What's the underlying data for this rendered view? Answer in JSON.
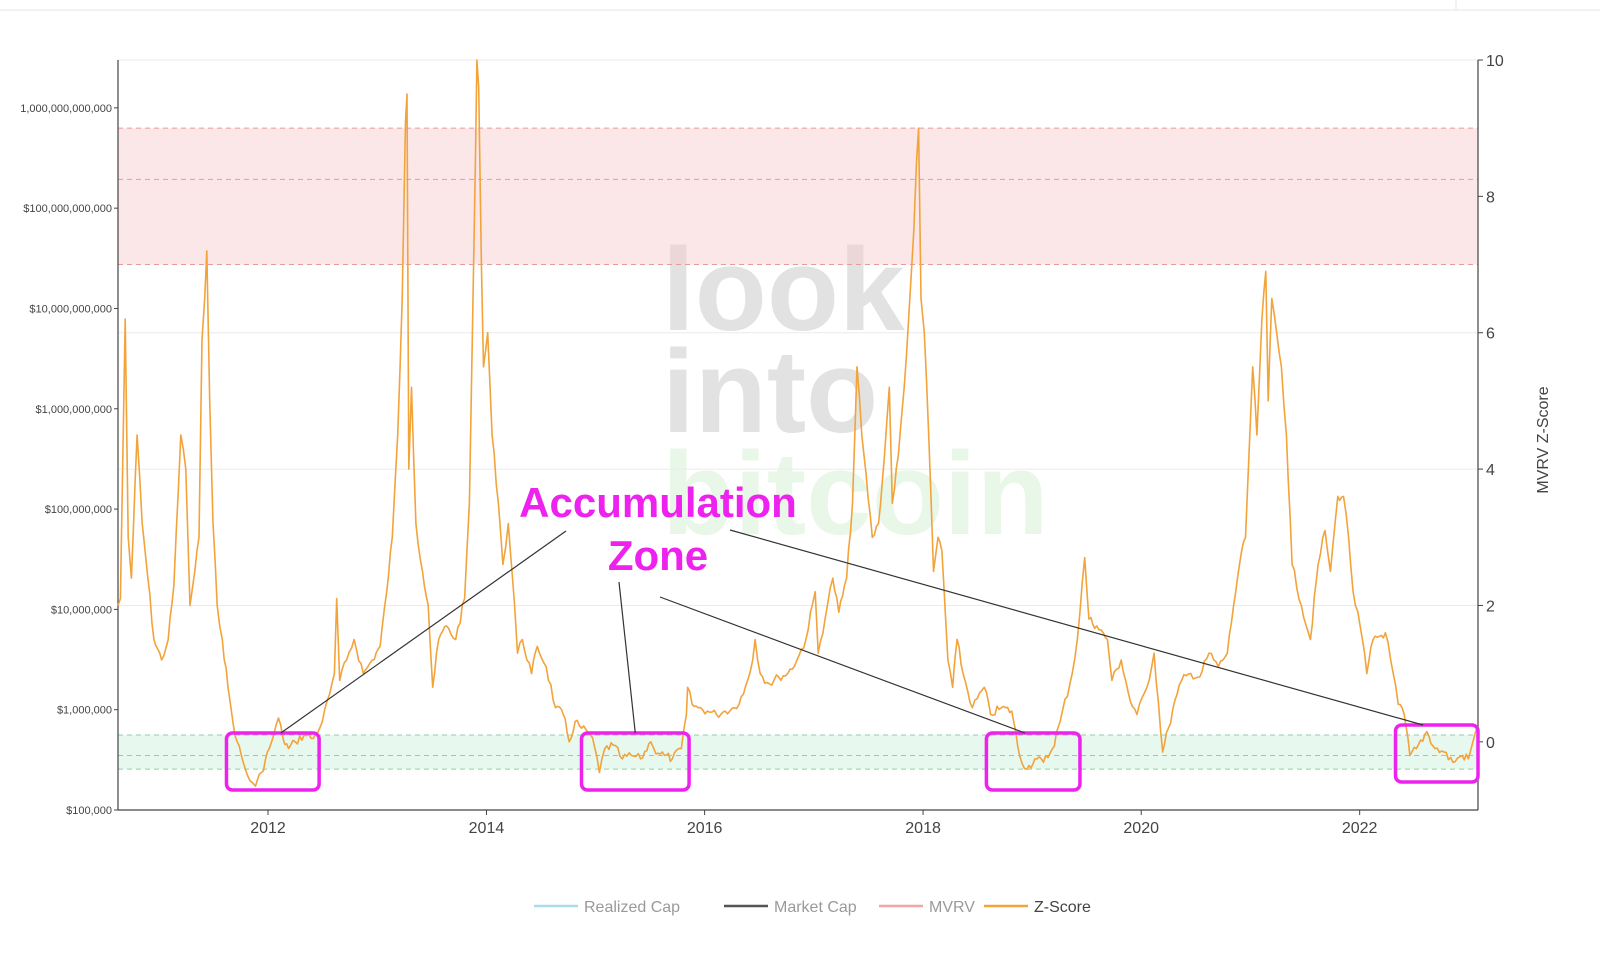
{
  "chart_data": {
    "type": "line",
    "x_domain": [
      "2010-08-17",
      "2023-02-01"
    ],
    "x_ticks": [
      "2012",
      "2014",
      "2016",
      "2018",
      "2020",
      "2022"
    ],
    "y_left": {
      "scale": "log",
      "range": [
        100000,
        3000000000000
      ],
      "ticks": [
        {
          "value": 100000,
          "label": "$100,000"
        },
        {
          "value": 1000000,
          "label": "$1,000,000"
        },
        {
          "value": 10000000,
          "label": "$10,000,000"
        },
        {
          "value": 100000000,
          "label": "$100,000,000"
        },
        {
          "value": 1000000000,
          "label": "$1,000,000,000"
        },
        {
          "value": 10000000000,
          "label": "$10,000,000,000"
        },
        {
          "value": 100000000000,
          "label": "$100,000,000,000"
        },
        {
          "value": 1000000000000,
          "label": "1,000,000,000,000"
        }
      ]
    },
    "y_right": {
      "label": "MVRV Z-Score",
      "scale": "linear",
      "range": [
        -1,
        10
      ],
      "ticks": [
        0,
        2,
        4,
        6,
        8,
        10
      ]
    },
    "bands": [
      {
        "name": "red-band",
        "y0": 7,
        "y1": 9,
        "inner_line": 8.25,
        "color": "#f7c9c9"
      },
      {
        "name": "green-band",
        "y0": -0.4,
        "y1": 0.1,
        "inner_line": -0.2,
        "color": "#c9f0d9"
      }
    ],
    "legend": {
      "placement": "bottom-center",
      "items": [
        {
          "name": "Realized Cap",
          "color": "#a8dcea"
        },
        {
          "name": "Market Cap",
          "color": "#555555"
        },
        {
          "name": "MVRV",
          "color": "#f2a6a6"
        },
        {
          "name": "Z-Score",
          "color": "#f2a33a"
        }
      ]
    },
    "series": [
      {
        "name": "Z-Score",
        "color": "#f2a33a",
        "points": [
          [
            "2010-08-17",
            2.0
          ],
          [
            "2010-08-25",
            2.1
          ],
          [
            "2010-09-10",
            6.2
          ],
          [
            "2010-09-20",
            3.0
          ],
          [
            "2010-10-01",
            2.4
          ],
          [
            "2010-10-20",
            4.5
          ],
          [
            "2010-11-06",
            3.2
          ],
          [
            "2010-11-25",
            2.4
          ],
          [
            "2010-12-15",
            1.5
          ],
          [
            "2011-01-10",
            1.2
          ],
          [
            "2011-02-01",
            1.5
          ],
          [
            "2011-02-20",
            2.3
          ],
          [
            "2011-03-15",
            4.5
          ],
          [
            "2011-04-01",
            4.0
          ],
          [
            "2011-04-15",
            2.0
          ],
          [
            "2011-05-01",
            2.5
          ],
          [
            "2011-05-15",
            3.0
          ],
          [
            "2011-05-25",
            5.9
          ],
          [
            "2011-06-03",
            6.5
          ],
          [
            "2011-06-10",
            7.2
          ],
          [
            "2011-06-20",
            5.0
          ],
          [
            "2011-07-01",
            3.2
          ],
          [
            "2011-07-15",
            2.0
          ],
          [
            "2011-08-01",
            1.5
          ],
          [
            "2011-08-20",
            0.8
          ],
          [
            "2011-09-05",
            0.3
          ],
          [
            "2011-09-20",
            0.0
          ],
          [
            "2011-10-10",
            -0.3
          ],
          [
            "2011-10-25",
            -0.5
          ],
          [
            "2011-11-10",
            -0.6
          ],
          [
            "2011-11-20",
            -0.65
          ],
          [
            "2011-12-10",
            -0.45
          ],
          [
            "2012-01-05",
            -0.1
          ],
          [
            "2012-01-20",
            0.1
          ],
          [
            "2012-02-05",
            0.35
          ],
          [
            "2012-02-20",
            0.05
          ],
          [
            "2012-03-10",
            -0.1
          ],
          [
            "2012-04-01",
            0.0
          ],
          [
            "2012-05-01",
            0.1
          ],
          [
            "2012-06-01",
            0.05
          ],
          [
            "2012-07-01",
            0.3
          ],
          [
            "2012-07-25",
            0.7
          ],
          [
            "2012-08-10",
            1.0
          ],
          [
            "2012-08-18",
            2.1
          ],
          [
            "2012-08-28",
            0.9
          ],
          [
            "2012-09-20",
            1.2
          ],
          [
            "2012-10-15",
            1.5
          ],
          [
            "2012-11-15",
            1.0
          ],
          [
            "2012-12-15",
            1.2
          ],
          [
            "2013-01-10",
            1.4
          ],
          [
            "2013-02-01",
            2.2
          ],
          [
            "2013-02-20",
            3.0
          ],
          [
            "2013-03-10",
            4.5
          ],
          [
            "2013-03-25",
            6.5
          ],
          [
            "2013-04-05",
            9.1
          ],
          [
            "2013-04-10",
            9.5
          ],
          [
            "2013-04-16",
            4.0
          ],
          [
            "2013-04-25",
            5.2
          ],
          [
            "2013-05-10",
            3.2
          ],
          [
            "2013-06-01",
            2.5
          ],
          [
            "2013-06-20",
            2.0
          ],
          [
            "2013-07-05",
            0.8
          ],
          [
            "2013-07-25",
            1.5
          ],
          [
            "2013-08-20",
            1.7
          ],
          [
            "2013-09-20",
            1.5
          ],
          [
            "2013-10-20",
            2.1
          ],
          [
            "2013-11-05",
            3.5
          ],
          [
            "2013-11-15",
            6.0
          ],
          [
            "2013-11-25",
            8.5
          ],
          [
            "2013-11-30",
            10.0
          ],
          [
            "2013-12-06",
            9.6
          ],
          [
            "2013-12-15",
            7.0
          ],
          [
            "2013-12-22",
            5.5
          ],
          [
            "2014-01-05",
            6.0
          ],
          [
            "2014-01-20",
            4.5
          ],
          [
            "2014-02-10",
            3.5
          ],
          [
            "2014-02-25",
            2.6
          ],
          [
            "2014-03-15",
            3.2
          ],
          [
            "2014-04-05",
            2.0
          ],
          [
            "2014-04-15",
            1.3
          ],
          [
            "2014-05-01",
            1.5
          ],
          [
            "2014-06-01",
            1.0
          ],
          [
            "2014-06-20",
            1.4
          ],
          [
            "2014-07-20",
            1.1
          ],
          [
            "2014-08-20",
            0.5
          ],
          [
            "2014-09-15",
            0.4
          ],
          [
            "2014-10-05",
            0.0
          ],
          [
            "2014-10-25",
            0.3
          ],
          [
            "2014-11-15",
            0.2
          ],
          [
            "2014-12-15",
            0.1
          ],
          [
            "2015-01-05",
            -0.2
          ],
          [
            "2015-01-14",
            -0.45
          ],
          [
            "2015-02-01",
            -0.1
          ],
          [
            "2015-03-01",
            -0.05
          ],
          [
            "2015-04-01",
            -0.25
          ],
          [
            "2015-05-01",
            -0.2
          ],
          [
            "2015-06-01",
            -0.25
          ],
          [
            "2015-07-05",
            0.0
          ],
          [
            "2015-07-15",
            -0.1
          ],
          [
            "2015-08-20",
            -0.2
          ],
          [
            "2015-09-15",
            -0.25
          ],
          [
            "2015-10-15",
            -0.1
          ],
          [
            "2015-11-01",
            0.4
          ],
          [
            "2015-11-05",
            0.8
          ],
          [
            "2015-11-20",
            0.55
          ],
          [
            "2015-12-10",
            0.5
          ],
          [
            "2016-01-10",
            0.45
          ],
          [
            "2016-02-10",
            0.4
          ],
          [
            "2016-03-10",
            0.45
          ],
          [
            "2016-04-10",
            0.5
          ],
          [
            "2016-05-10",
            0.7
          ],
          [
            "2016-06-10",
            1.2
          ],
          [
            "2016-06-18",
            1.5
          ],
          [
            "2016-07-05",
            1.0
          ],
          [
            "2016-08-05",
            0.85
          ],
          [
            "2016-09-05",
            0.95
          ],
          [
            "2016-10-05",
            1.0
          ],
          [
            "2016-11-05",
            1.2
          ],
          [
            "2016-12-05",
            1.5
          ],
          [
            "2017-01-05",
            2.2
          ],
          [
            "2017-01-15",
            1.3
          ],
          [
            "2017-02-15",
            2.0
          ],
          [
            "2017-03-05",
            2.4
          ],
          [
            "2017-03-25",
            1.9
          ],
          [
            "2017-04-20",
            2.4
          ],
          [
            "2017-05-10",
            3.5
          ],
          [
            "2017-05-25",
            5.5
          ],
          [
            "2017-06-10",
            4.5
          ],
          [
            "2017-07-15",
            3.0
          ],
          [
            "2017-08-05",
            3.2
          ],
          [
            "2017-08-25",
            4.2
          ],
          [
            "2017-09-10",
            5.2
          ],
          [
            "2017-09-20",
            3.5
          ],
          [
            "2017-10-10",
            4.2
          ],
          [
            "2017-10-30",
            5.2
          ],
          [
            "2017-11-15",
            6.3
          ],
          [
            "2017-12-01",
            7.5
          ],
          [
            "2017-12-10",
            8.5
          ],
          [
            "2017-12-17",
            9.0
          ],
          [
            "2017-12-25",
            6.5
          ],
          [
            "2018-01-05",
            6.0
          ],
          [
            "2018-01-20",
            4.5
          ],
          [
            "2018-02-05",
            2.5
          ],
          [
            "2018-02-20",
            3.0
          ],
          [
            "2018-03-05",
            2.8
          ],
          [
            "2018-03-25",
            1.2
          ],
          [
            "2018-04-10",
            0.8
          ],
          [
            "2018-04-25",
            1.5
          ],
          [
            "2018-05-15",
            1.0
          ],
          [
            "2018-06-15",
            0.5
          ],
          [
            "2018-07-25",
            0.8
          ],
          [
            "2018-08-15",
            0.4
          ],
          [
            "2018-09-20",
            0.5
          ],
          [
            "2018-10-25",
            0.45
          ],
          [
            "2018-11-20",
            -0.2
          ],
          [
            "2018-12-15",
            -0.4
          ],
          [
            "2019-01-10",
            -0.25
          ],
          [
            "2019-02-08",
            -0.3
          ],
          [
            "2019-03-10",
            -0.1
          ],
          [
            "2019-04-05",
            0.3
          ],
          [
            "2019-05-15",
            1.0
          ],
          [
            "2019-06-01",
            1.5
          ],
          [
            "2019-06-26",
            2.7
          ],
          [
            "2019-07-10",
            1.8
          ],
          [
            "2019-08-05",
            1.7
          ],
          [
            "2019-09-10",
            1.5
          ],
          [
            "2019-09-25",
            0.9
          ],
          [
            "2019-10-26",
            1.2
          ],
          [
            "2019-11-25",
            0.6
          ],
          [
            "2019-12-18",
            0.4
          ],
          [
            "2020-01-20",
            0.8
          ],
          [
            "2020-02-13",
            1.3
          ],
          [
            "2020-03-13",
            -0.15
          ],
          [
            "2020-04-01",
            0.2
          ],
          [
            "2020-04-30",
            0.7
          ],
          [
            "2020-05-15",
            0.9
          ],
          [
            "2020-06-15",
            1.0
          ],
          [
            "2020-07-15",
            0.95
          ],
          [
            "2020-08-15",
            1.3
          ],
          [
            "2020-09-15",
            1.1
          ],
          [
            "2020-10-15",
            1.3
          ],
          [
            "2020-11-05",
            2.0
          ],
          [
            "2020-11-25",
            2.6
          ],
          [
            "2020-12-15",
            3.0
          ],
          [
            "2021-01-08",
            5.5
          ],
          [
            "2021-01-22",
            4.5
          ],
          [
            "2021-02-08",
            6.2
          ],
          [
            "2021-02-21",
            6.9
          ],
          [
            "2021-03-01",
            5.0
          ],
          [
            "2021-03-13",
            6.5
          ],
          [
            "2021-04-14",
            5.5
          ],
          [
            "2021-05-01",
            4.5
          ],
          [
            "2021-05-20",
            2.6
          ],
          [
            "2021-06-20",
            2.0
          ],
          [
            "2021-07-20",
            1.5
          ],
          [
            "2021-08-15",
            2.6
          ],
          [
            "2021-09-07",
            3.1
          ],
          [
            "2021-09-25",
            2.5
          ],
          [
            "2021-10-20",
            3.6
          ],
          [
            "2021-11-08",
            3.6
          ],
          [
            "2021-11-25",
            3.0
          ],
          [
            "2021-12-10",
            2.2
          ],
          [
            "2022-01-10",
            1.5
          ],
          [
            "2022-01-25",
            1.0
          ],
          [
            "2022-02-15",
            1.5
          ],
          [
            "2022-03-28",
            1.6
          ],
          [
            "2022-04-15",
            1.2
          ],
          [
            "2022-05-10",
            0.55
          ],
          [
            "2022-05-30",
            0.4
          ],
          [
            "2022-06-18",
            -0.2
          ],
          [
            "2022-07-10",
            -0.1
          ],
          [
            "2022-08-14",
            0.15
          ],
          [
            "2022-09-10",
            -0.1
          ],
          [
            "2022-10-10",
            -0.15
          ],
          [
            "2022-11-09",
            -0.3
          ],
          [
            "2022-12-10",
            -0.2
          ],
          [
            "2022-12-31",
            -0.25
          ],
          [
            "2023-01-15",
            0.0
          ],
          [
            "2023-01-28",
            0.2
          ]
        ]
      }
    ],
    "annotations": {
      "label_lines": [
        "Accumulation",
        "Zone"
      ],
      "boxes": [
        [
          "2011-08-15",
          "2012-06-20"
        ],
        [
          "2014-11-15",
          "2015-11-10"
        ],
        [
          "2018-08-01",
          "2019-06-10"
        ],
        [
          "2022-05-01",
          "2023-02-01"
        ]
      ]
    }
  },
  "watermark": {
    "lines": [
      "look",
      "into",
      "bitcoin"
    ],
    "colors": [
      "#e2e2e2",
      "#e2e2e2",
      "#e8f7e8"
    ]
  }
}
